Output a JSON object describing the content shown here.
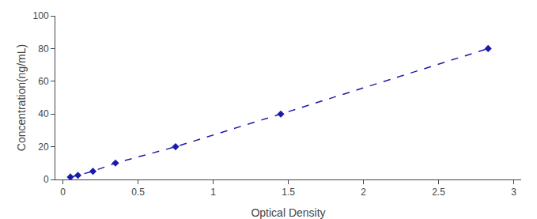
{
  "chart_data": {
    "type": "line",
    "x": [
      0.05,
      0.1,
      0.2,
      0.35,
      0.75,
      1.45,
      2.83
    ],
    "values": [
      1.5,
      2.5,
      5.0,
      10.0,
      20.0,
      40.0,
      80.0
    ],
    "color": "#1a1aaa",
    "marker": "diamond",
    "line_style": "dashed",
    "xlabel": "Optical Density",
    "ylabel": "Concentration(ng/mL)",
    "xlim": [
      -0.05,
      3.05
    ],
    "ylim": [
      0,
      100
    ],
    "xticks": [
      0,
      0.5,
      1,
      1.5,
      2,
      2.5,
      3
    ],
    "yticks": [
      0,
      20,
      40,
      60,
      80,
      100
    ],
    "grid": false
  }
}
